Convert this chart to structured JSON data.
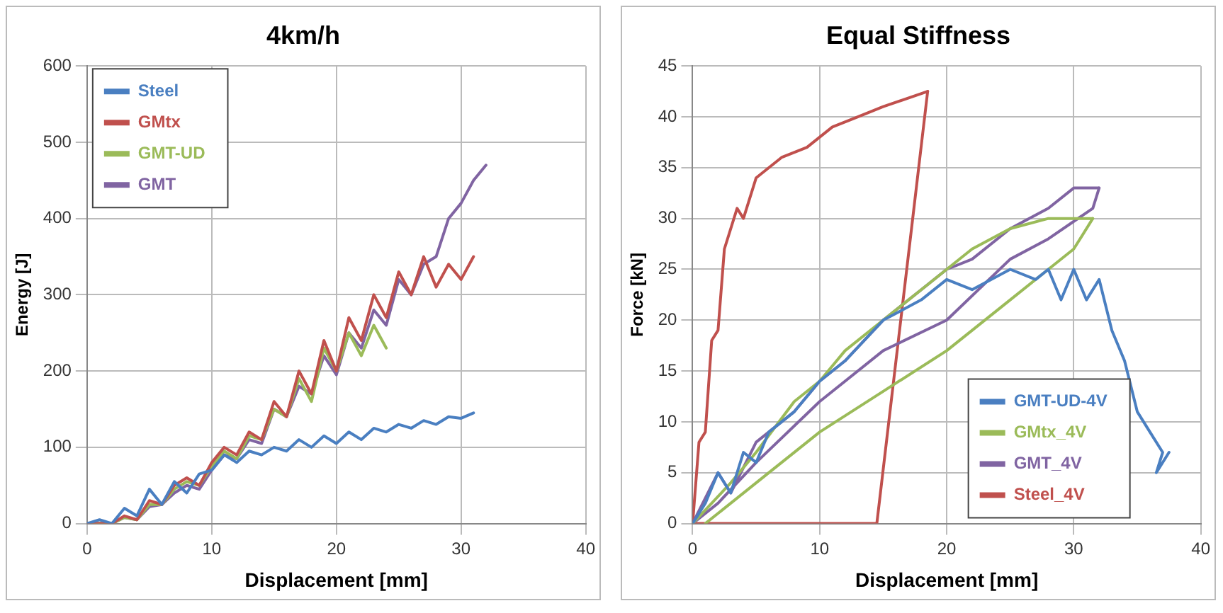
{
  "chart_data": [
    {
      "type": "line",
      "title": "4km/h",
      "xlabel": "Displacement [mm]",
      "ylabel": "Energy [J]",
      "xlim": [
        0,
        40
      ],
      "xticks": [
        0,
        10,
        20,
        30,
        40
      ],
      "ylim": [
        0,
        600
      ],
      "yticks": [
        0,
        100,
        200,
        300,
        400,
        500,
        600
      ],
      "grid": true,
      "legend": "top left",
      "marker": "none",
      "series": [
        {
          "name": "Steel",
          "color": "#4a7fc1",
          "x": [
            0,
            1,
            2,
            3,
            4,
            5,
            6,
            7,
            8,
            9,
            10,
            11,
            12,
            13,
            14,
            15,
            16,
            17,
            18,
            19,
            20,
            21,
            22,
            23,
            24,
            25,
            26,
            27,
            28,
            29,
            30,
            31
          ],
          "values": [
            0,
            5,
            0,
            20,
            10,
            45,
            25,
            55,
            40,
            65,
            70,
            90,
            80,
            95,
            90,
            100,
            95,
            110,
            100,
            115,
            105,
            120,
            110,
            125,
            120,
            130,
            125,
            135,
            130,
            140,
            138,
            145
          ]
        },
        {
          "name": "GMtx",
          "color": "#c0504d",
          "x": [
            0,
            2,
            3,
            4,
            5,
            6,
            7,
            8,
            9,
            10,
            11,
            12,
            13,
            14,
            15,
            16,
            17,
            18,
            19,
            20,
            21,
            22,
            23,
            24,
            25,
            26,
            27,
            28,
            29,
            30,
            31
          ],
          "values": [
            0,
            0,
            10,
            5,
            30,
            25,
            50,
            60,
            50,
            80,
            100,
            90,
            120,
            110,
            160,
            140,
            200,
            170,
            240,
            200,
            270,
            240,
            300,
            270,
            330,
            300,
            350,
            310,
            340,
            320,
            350
          ]
        },
        {
          "name": "GMT-UD",
          "color": "#9bbb59",
          "x": [
            0,
            2,
            3,
            4,
            5,
            6,
            7,
            8,
            9,
            10,
            11,
            12,
            13,
            14,
            15,
            16,
            17,
            18,
            19,
            20,
            21,
            22,
            23,
            24
          ],
          "values": [
            0,
            0,
            8,
            5,
            25,
            25,
            45,
            55,
            50,
            75,
            95,
            85,
            115,
            110,
            150,
            140,
            190,
            160,
            230,
            200,
            250,
            220,
            260,
            230
          ]
        },
        {
          "name": "GMT",
          "color": "#8064a2",
          "x": [
            0,
            2,
            3,
            4,
            5,
            6,
            7,
            8,
            9,
            10,
            11,
            12,
            13,
            14,
            15,
            16,
            17,
            18,
            19,
            20,
            21,
            22,
            23,
            24,
            25,
            26,
            27,
            28,
            29,
            30,
            31,
            32
          ],
          "values": [
            0,
            0,
            8,
            5,
            22,
            25,
            40,
            50,
            45,
            70,
            90,
            85,
            110,
            105,
            150,
            140,
            180,
            170,
            220,
            195,
            250,
            230,
            280,
            260,
            320,
            300,
            340,
            350,
            400,
            420,
            450,
            470
          ]
        }
      ]
    },
    {
      "type": "line",
      "title": "Equal Stiffness",
      "xlabel": "Displacement [mm]",
      "ylabel": "Force [kN]",
      "xlim": [
        0,
        40
      ],
      "xticks": [
        0,
        10,
        20,
        30,
        40
      ],
      "ylim": [
        0,
        45
      ],
      "yticks": [
        0,
        5,
        10,
        15,
        20,
        25,
        30,
        35,
        40,
        45
      ],
      "grid": true,
      "legend": "bottom right",
      "marker": "none",
      "series": [
        {
          "name": "GMT-UD-4V",
          "color": "#4a7fc1",
          "x": [
            0,
            1,
            2,
            3,
            4,
            5,
            6,
            8,
            10,
            12,
            15,
            18,
            20,
            22,
            25,
            27,
            28,
            29,
            30,
            31,
            32,
            33,
            34,
            35,
            36,
            37,
            36.5,
            37.5
          ],
          "values": [
            0,
            2,
            5,
            3,
            7,
            6,
            9,
            11,
            14,
            16,
            20,
            22,
            24,
            23,
            25,
            24,
            25,
            22,
            25,
            22,
            24,
            19,
            16,
            11,
            9,
            7,
            5,
            7
          ]
        },
        {
          "name": "GMtx_4V",
          "color": "#9bbb59",
          "x": [
            0,
            3,
            5,
            8,
            10,
            12,
            15,
            18,
            20,
            22,
            25,
            28,
            30,
            31.5
          ],
          "values": [
            0,
            4,
            7,
            12,
            14,
            17,
            20,
            23,
            25,
            27,
            29,
            30,
            30,
            30
          ]
        },
        {
          "color": "#9bbb59",
          "x": [
            1,
            5,
            10,
            15,
            20,
            25,
            28,
            30,
            31.5
          ],
          "values": [
            0,
            4,
            9,
            13,
            17,
            22,
            25,
            27,
            30
          ]
        },
        {
          "name": "GMT_4V",
          "color": "#8064a2",
          "x": [
            0,
            2,
            3,
            5,
            8,
            10,
            12,
            15,
            18,
            20,
            22,
            25,
            28,
            30,
            32
          ],
          "values": [
            0,
            5,
            3,
            8,
            11,
            14,
            16,
            20,
            23,
            25,
            26,
            29,
            31,
            33,
            33
          ]
        },
        {
          "color": "#8064a2",
          "x": [
            0,
            2,
            5,
            10,
            15,
            20,
            25,
            28,
            31.5,
            32
          ],
          "values": [
            0,
            2,
            6,
            12,
            17,
            20,
            26,
            28,
            31,
            33
          ]
        },
        {
          "name": "Steel_4V",
          "color": "#c0504d",
          "x": [
            0,
            0.5,
            1,
            1.5,
            2,
            2.5,
            3.5,
            4,
            5,
            7,
            9,
            11,
            13,
            15,
            18.5
          ],
          "values": [
            0,
            8,
            9,
            18,
            19,
            27,
            31,
            30,
            34,
            36,
            37,
            39,
            40,
            41,
            42.5
          ]
        },
        {
          "color": "#c0504d",
          "x": [
            0,
            14.5,
            18.5
          ],
          "values": [
            0,
            0,
            42.5
          ]
        }
      ]
    }
  ]
}
